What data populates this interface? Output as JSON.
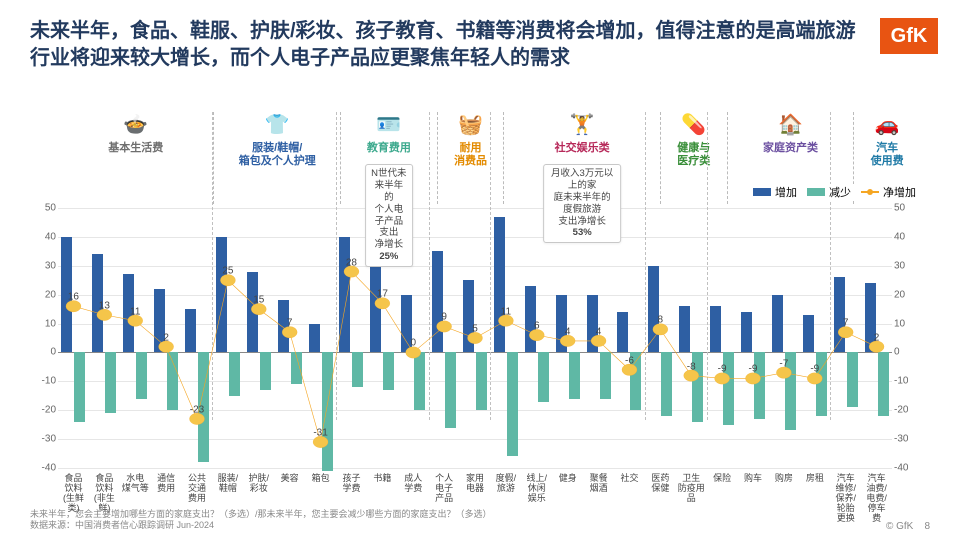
{
  "title": "未来半年，食品、鞋服、护肤/彩妆、孩子教育、书籍等消费将会增加，值得注意的是高端旅游行业将迎来较大增长，而个人电子产品应更聚焦年轻人的需求",
  "logo": "GfK",
  "legend": {
    "increase": "增加",
    "decrease": "减少",
    "net": "净增加"
  },
  "colors": {
    "increase": "#2e5fa3",
    "decrease": "#5fb8a5",
    "net_line": "#f5a623",
    "net_marker": "#f5c54a",
    "grid": "#e6e6e6",
    "zero": "#888888"
  },
  "ylim": [
    -40,
    50
  ],
  "yticks": [
    -40,
    -30,
    -20,
    -10,
    0,
    10,
    20,
    30,
    40,
    50
  ],
  "groups": [
    {
      "label": "基本生活费",
      "icon": "🍲",
      "color": "#6e6e6e",
      "span": 5
    },
    {
      "label": "服装/鞋帽/\n箱包及个人护理",
      "icon": "👕",
      "color": "#2e5fa3",
      "span": 4
    },
    {
      "label": "教育费用",
      "icon": "🪪",
      "color": "#3ca98d",
      "span": 3,
      "callout": "N世代未来半年的\n个人电子产品支出\n净增长<b>25%</b>"
    },
    {
      "label": "耐用\n消费品",
      "icon": "🧺",
      "color": "#e38b00",
      "span": 2
    },
    {
      "label": "社交娱乐类",
      "icon": "🏋️",
      "color": "#b7295a",
      "span": 5,
      "callout": "月收入3万元以上的家\n庭未来半年的度假旅游\n支出净增长<b>53%</b>"
    },
    {
      "label": "健康与\n医疗类",
      "icon": "💊",
      "color": "#3a8f3a",
      "span": 2
    },
    {
      "label": "家庭资产类",
      "icon": "🏠",
      "color": "#6b4fa0",
      "span": 4
    },
    {
      "label": "汽车\n使用费",
      "icon": "🚗",
      "color": "#1f7aa6",
      "span": 2
    }
  ],
  "items": [
    {
      "cat": "食品\n饮料\n(生鲜\n类)",
      "inc": 40,
      "dec": -24,
      "net": 16
    },
    {
      "cat": "食品\n饮料\n(非生\n鲜)",
      "inc": 34,
      "dec": -21,
      "net": 13
    },
    {
      "cat": "水电\n煤气等",
      "inc": 27,
      "dec": -16,
      "net": 11
    },
    {
      "cat": "通信\n费用",
      "inc": 22,
      "dec": -20,
      "net": 2
    },
    {
      "cat": "公共\n交通\n费用",
      "inc": 15,
      "dec": -38,
      "net": -23
    },
    {
      "cat": "服装/\n鞋帽",
      "inc": 40,
      "dec": -15,
      "net": 25
    },
    {
      "cat": "护肤/\n彩妆",
      "inc": 28,
      "dec": -13,
      "net": 15
    },
    {
      "cat": "美容",
      "inc": 18,
      "dec": -11,
      "net": 7
    },
    {
      "cat": "箱包",
      "inc": 10,
      "dec": -41,
      "net": -31
    },
    {
      "cat": "孩子\n学费",
      "inc": 40,
      "dec": -12,
      "net": 28
    },
    {
      "cat": "书籍",
      "inc": 30,
      "dec": -13,
      "net": 17
    },
    {
      "cat": "成人\n学费",
      "inc": 20,
      "dec": -20,
      "net": 0
    },
    {
      "cat": "个人\n电子\n产品",
      "inc": 35,
      "dec": -26,
      "net": 9
    },
    {
      "cat": "家用\n电器",
      "inc": 25,
      "dec": -20,
      "net": 5
    },
    {
      "cat": "度假/\n旅游",
      "inc": 47,
      "dec": -36,
      "net": 11
    },
    {
      "cat": "线上/\n休闲\n娱乐",
      "inc": 23,
      "dec": -17,
      "net": 6
    },
    {
      "cat": "健身",
      "inc": 20,
      "dec": -16,
      "net": 4
    },
    {
      "cat": "聚餐\n烟酒",
      "inc": 20,
      "dec": -16,
      "net": 4
    },
    {
      "cat": "社交",
      "inc": 14,
      "dec": -20,
      "net": -6
    },
    {
      "cat": "医药\n保健",
      "inc": 30,
      "dec": -22,
      "net": 8
    },
    {
      "cat": "卫生\n防疫用\n品",
      "inc": 16,
      "dec": -24,
      "net": -8
    },
    {
      "cat": "保险",
      "inc": 16,
      "dec": -25,
      "net": -9
    },
    {
      "cat": "购车",
      "inc": 14,
      "dec": -23,
      "net": -9
    },
    {
      "cat": "购房",
      "inc": 20,
      "dec": -27,
      "net": -7
    },
    {
      "cat": "房租",
      "inc": 13,
      "dec": -22,
      "net": -9
    },
    {
      "cat": "汽车\n维修/\n保养/\n轮胎\n更换",
      "inc": 26,
      "dec": -19,
      "net": 7
    },
    {
      "cat": "汽车\n油费/\n电费/\n停车\n费",
      "inc": 24,
      "dec": -22,
      "net": 2
    }
  ],
  "footer": {
    "q1": "未来半年，您会主要增加哪些方面的家庭支出？（多选）/那未来半年，您主要会减少哪些方面的家庭支出？（多选）",
    "src": "数据来源：中国消费者信心跟踪调研 Jun-2024",
    "copyright": "© GfK",
    "page": "8"
  }
}
